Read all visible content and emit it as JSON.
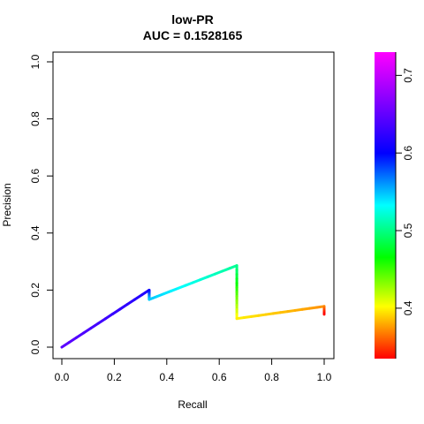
{
  "chart_data": {
    "type": "line",
    "title": "low-PR",
    "subtitle": "AUC = 0.1528165",
    "xlabel": "Recall",
    "ylabel": "Precision",
    "xlim": [
      0,
      1
    ],
    "ylim": [
      0,
      1
    ],
    "x_ticks": [
      "0.0",
      "0.2",
      "0.4",
      "0.6",
      "0.8",
      "1.0"
    ],
    "y_ticks": [
      "0.0",
      "0.2",
      "0.4",
      "0.6",
      "0.8",
      "1.0"
    ],
    "grid": false,
    "legend": "none",
    "curve": [
      {
        "recall": 0.0,
        "precision": 0.0,
        "threshold": 0.68
      },
      {
        "recall": 0.333,
        "precision": 0.2,
        "threshold": 0.66
      },
      {
        "recall": 0.333,
        "precision": 0.167,
        "threshold": 0.59
      },
      {
        "recall": 0.667,
        "precision": 0.286,
        "threshold": 0.54
      },
      {
        "recall": 0.667,
        "precision": 0.1,
        "threshold": 0.41
      },
      {
        "recall": 1.0,
        "precision": 0.143,
        "threshold": 0.38
      },
      {
        "recall": 1.0,
        "precision": 0.115,
        "threshold": 0.335
      }
    ],
    "colorbar": {
      "min": 0.335,
      "max": 0.73,
      "ticks": [
        "0.4",
        "0.5",
        "0.6",
        "0.7"
      ],
      "colormap": "rainbow"
    }
  }
}
